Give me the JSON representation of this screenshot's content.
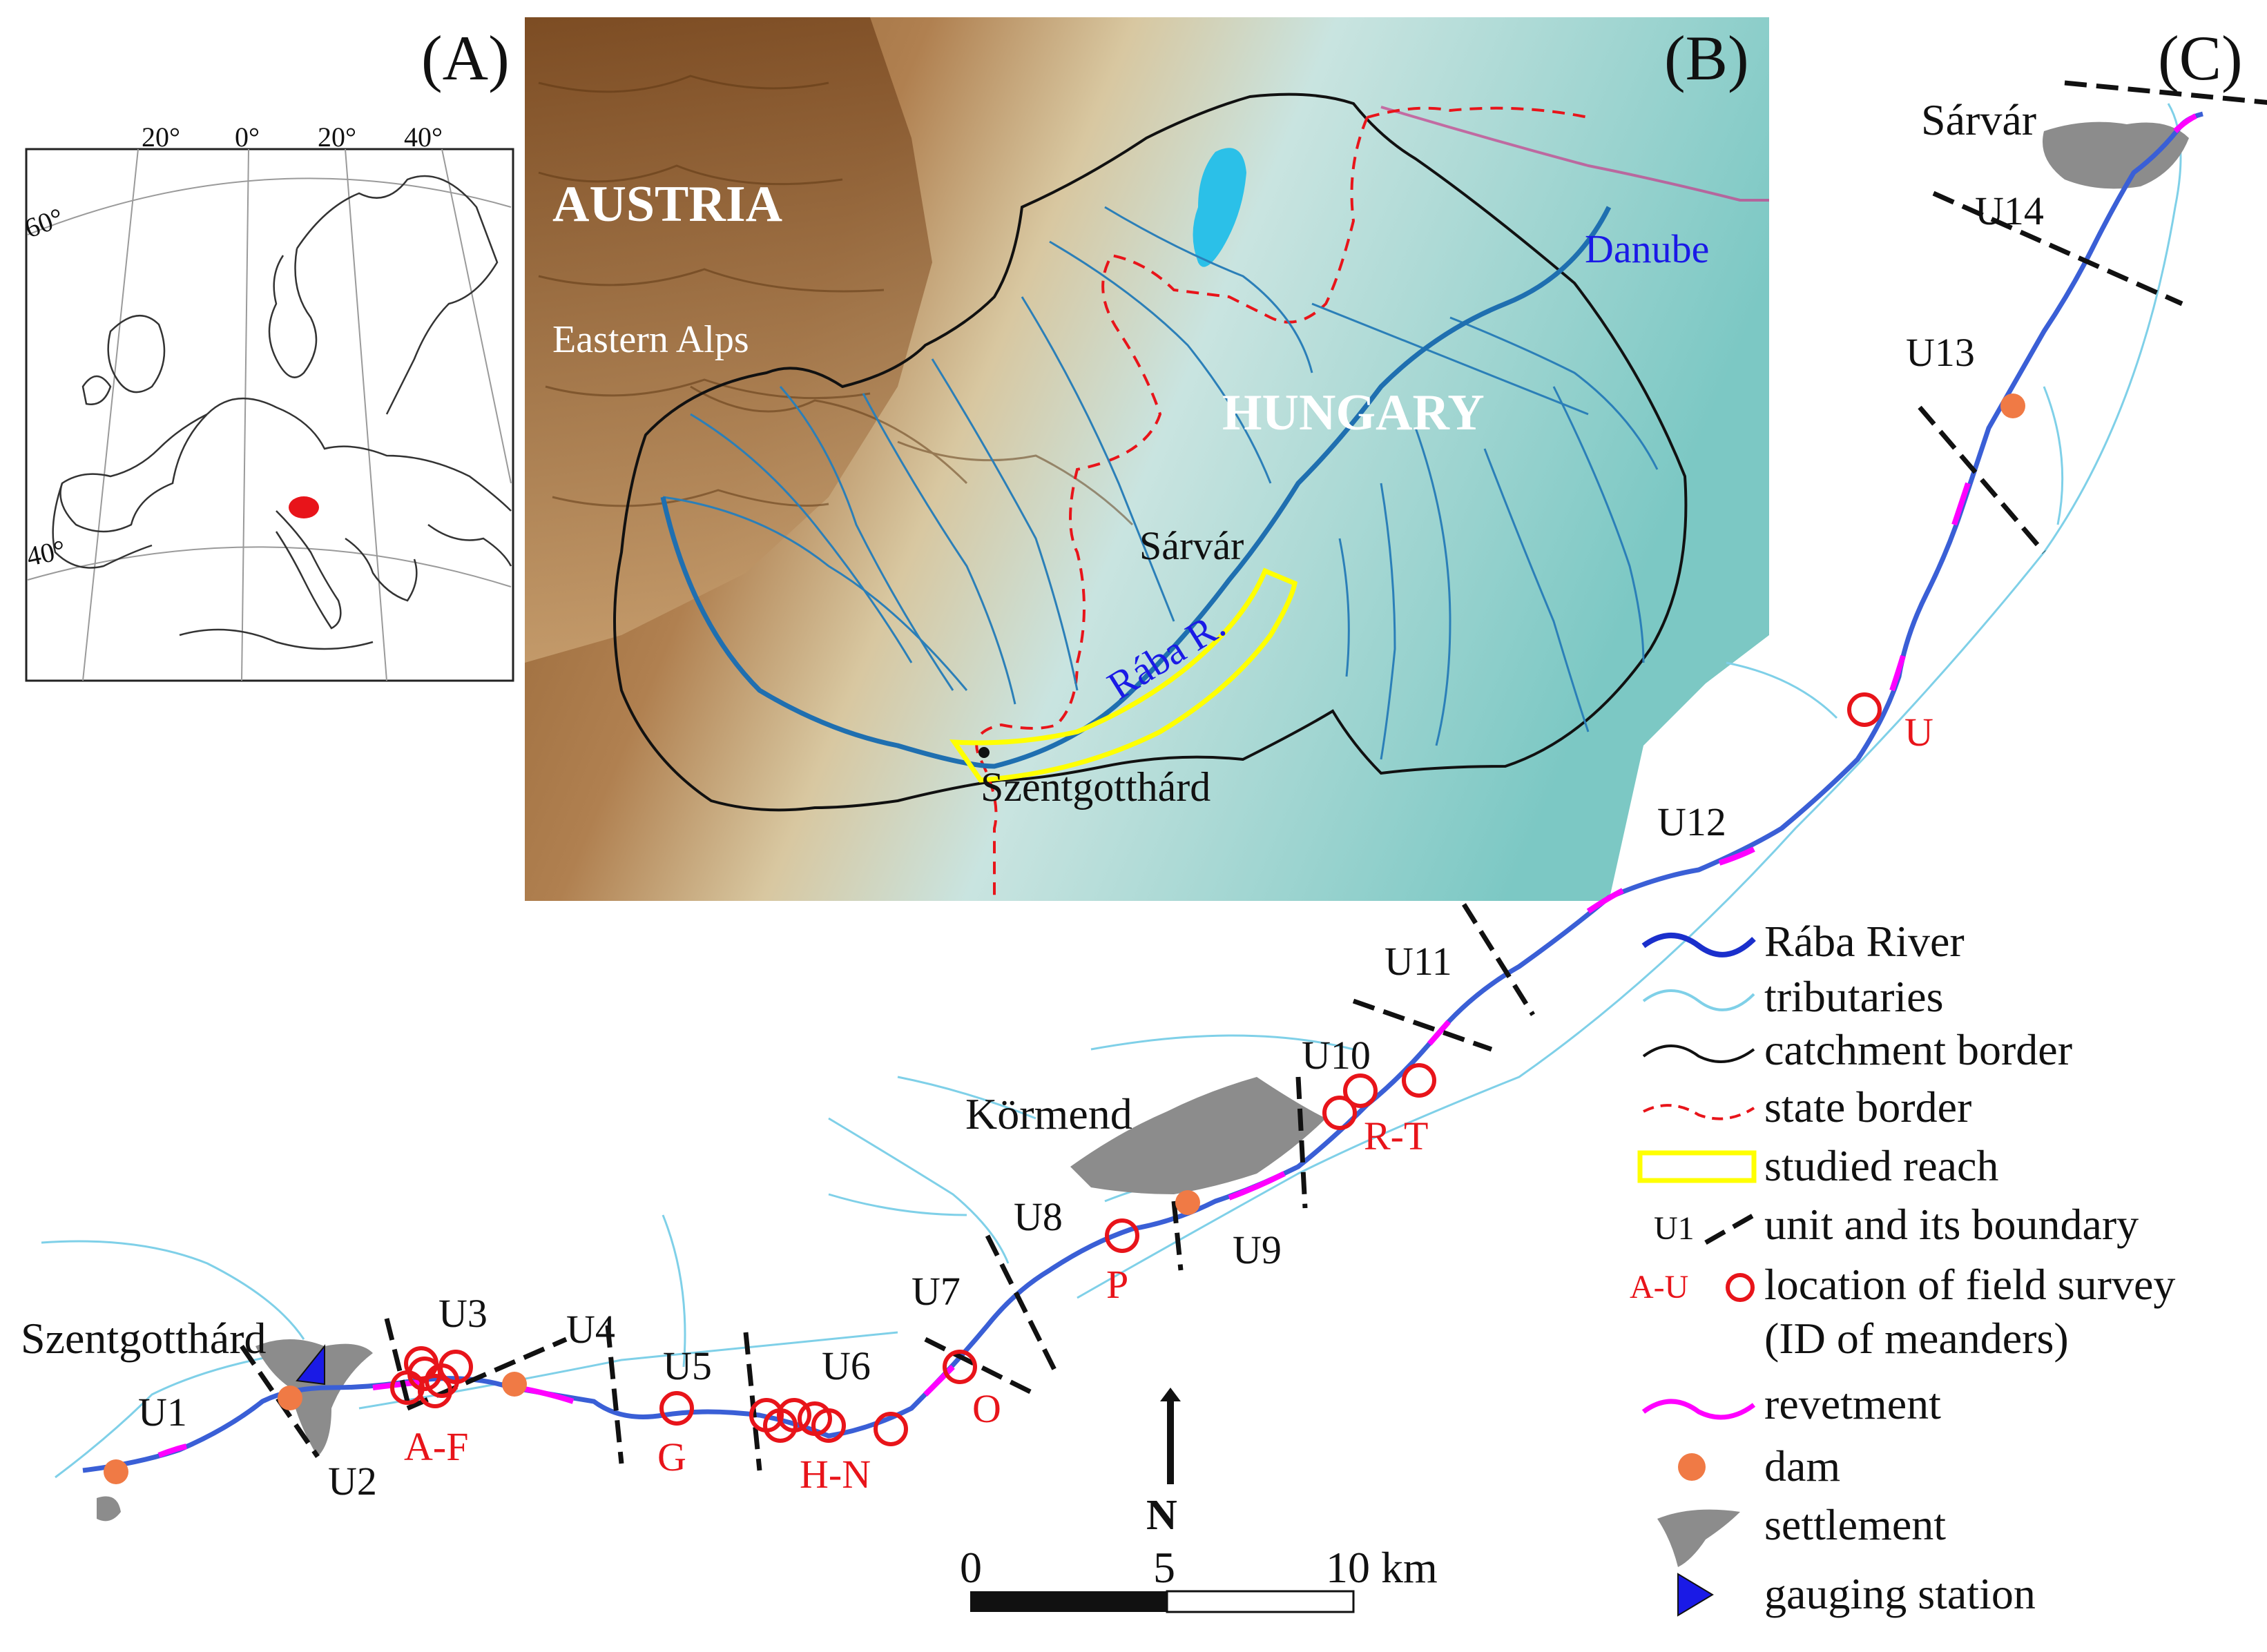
{
  "panels": {
    "a": "(A)",
    "b": "(B)",
    "c": "(C)"
  },
  "panel_a": {
    "graticule_top": [
      "20°",
      "0°",
      "20°",
      "40°"
    ],
    "lat_60": "60°",
    "lat_40": "40°"
  },
  "panel_b": {
    "austria": "AUSTRIA",
    "hungary": "HUNGARY",
    "eastern_alps": "Eastern Alps",
    "danube": "Danube",
    "sarvar": "Sárvár",
    "raba": "Rába R.",
    "szentgotthard": "Szentgotthárd"
  },
  "panel_c": {
    "towns": {
      "sarvar": "Sárvár",
      "kormend": "Körmend",
      "szentgotthard": "Szentgotthárd"
    },
    "units": [
      "U1",
      "U2",
      "U3",
      "U4",
      "U5",
      "U6",
      "U7",
      "U8",
      "U9",
      "U10",
      "U11",
      "U12",
      "U13",
      "U14"
    ],
    "meanders": [
      "A-F",
      "G",
      "H-N",
      "O",
      "P",
      "R-T",
      "U"
    ],
    "north": "N",
    "scale": [
      "0",
      "5",
      "10 km"
    ]
  },
  "legend": {
    "raba_river": "Rába River",
    "tributaries": "tributaries",
    "catchment_border": "catchment border",
    "state_border": "state border",
    "studied_reach": "studied reach",
    "unit_label": "U1",
    "unit": "unit and its boundary",
    "survey_label": "A-U",
    "survey_1": "location of field survey",
    "survey_2": "(ID of meanders)",
    "revetment": "revetment",
    "dam": "dam",
    "settlement": "settlement",
    "gauging": "gauging station"
  },
  "colors": {
    "river": "#3a5fd6",
    "tributary": "#7fd0e8",
    "revetment": "#ff00ff",
    "survey": "#e8141a",
    "dam": "#f07a45",
    "settlement": "#8c8c8c",
    "gauging": "#1a1ae6",
    "reach": "#ffff00"
  }
}
